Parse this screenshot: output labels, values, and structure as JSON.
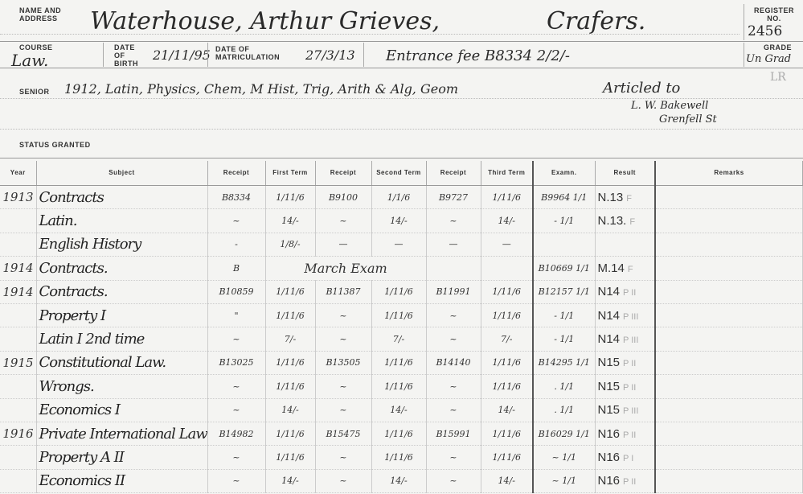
{
  "card": {
    "name_label": "Name and Address",
    "name": "Waterhouse, Arthur Grieves,",
    "address": "Crafers.",
    "register_label": "Register No.",
    "register_no": "2456",
    "course_label": "Course",
    "course": "Law.",
    "dob_label": "Date of Birth",
    "dob": "21/11/95",
    "matric_label": "Date of Matriculation",
    "matric": "27/3/13",
    "entrance": "Entrance fee B8334 2/2/-",
    "grade_label": "Grade",
    "grade": "Un Grad",
    "grade_note": "LR",
    "senior_label": "Senior",
    "senior": "1912, Latin, Physics, Chem, M Hist, Trig, Arith & Alg, Geom",
    "articled": "Articled to",
    "articled_name": "L. W. Bakewell",
    "articled_addr": "Grenfell St",
    "status_label": "Status Granted"
  },
  "table": {
    "headers": [
      "Year",
      "Subject",
      "Receipt",
      "First Term",
      "Receipt",
      "Second Term",
      "Receipt",
      "Third Term",
      "Examn.",
      "Result",
      "Remarks"
    ],
    "rows": [
      {
        "year": "1913",
        "subject": "Contracts",
        "r1": "B8334",
        "t1": "1/11/6",
        "r2": "B9100",
        "t2": "1/1/6",
        "r3": "B9727",
        "t3": "1/11/6",
        "exam": "B9964 1/1",
        "result": "N.13",
        "grade": "F"
      },
      {
        "year": "",
        "subject": "Latin.",
        "r1": "~",
        "t1": "14/-",
        "r2": "~",
        "t2": "14/-",
        "r3": "~",
        "t3": "14/-",
        "exam": "- 1/1",
        "result": "N.13.",
        "grade": "F"
      },
      {
        "year": "",
        "subject": "English History",
        "r1": "-",
        "t1": "1/8/-",
        "r2": "—",
        "t2": "—",
        "r3": "—",
        "t3": "—",
        "exam": "",
        "result": "",
        "grade": ""
      },
      {
        "year": "1914",
        "subject": "Contracts.",
        "r1": "B",
        "t1": "March Exam",
        "r2": "",
        "t2": "",
        "r3": "",
        "t3": "",
        "exam": "B10669 1/1",
        "result": "M.14",
        "grade": "F"
      },
      {
        "year": "1914",
        "subject": "Contracts.",
        "r1": "B10859",
        "t1": "1/11/6",
        "r2": "B11387",
        "t2": "1/11/6",
        "r3": "B11991",
        "t3": "1/11/6",
        "exam": "B12157 1/1",
        "result": "N14",
        "grade": "P II"
      },
      {
        "year": "",
        "subject": "Property I",
        "r1": "\"",
        "t1": "1/11/6",
        "r2": "~",
        "t2": "1/11/6",
        "r3": "~",
        "t3": "1/11/6",
        "exam": "- 1/1",
        "result": "N14",
        "grade": "P III"
      },
      {
        "year": "",
        "subject": "Latin I 2nd time",
        "r1": "~",
        "t1": "7/-",
        "r2": "~",
        "t2": "7/-",
        "r3": "~",
        "t3": "7/-",
        "exam": "- 1/1",
        "result": "N14",
        "grade": "P III"
      },
      {
        "year": "1915",
        "subject": "Constitutional Law.",
        "r1": "B13025",
        "t1": "1/11/6",
        "r2": "B13505",
        "t2": "1/11/6",
        "r3": "B14140",
        "t3": "1/11/6",
        "exam": "B14295 1/1",
        "result": "N15",
        "grade": "P II"
      },
      {
        "year": "",
        "subject": "Wrongs.",
        "r1": "~",
        "t1": "1/11/6",
        "r2": "~",
        "t2": "1/11/6",
        "r3": "~",
        "t3": "1/11/6",
        "exam": ". 1/1",
        "result": "N15",
        "grade": "P II"
      },
      {
        "year": "",
        "subject": "Economics I",
        "r1": "~",
        "t1": "14/-",
        "r2": "~",
        "t2": "14/-",
        "r3": "~",
        "t3": "14/-",
        "exam": ". 1/1",
        "result": "N15",
        "grade": "P III"
      },
      {
        "year": "1916",
        "subject": "Private International Law",
        "r1": "B14982",
        "t1": "1/11/6",
        "r2": "B15475",
        "t2": "1/11/6",
        "r3": "B15991",
        "t3": "1/11/6",
        "exam": "B16029 1/1",
        "result": "N16",
        "grade": "P II"
      },
      {
        "year": "",
        "subject": "Property A II",
        "r1": "~",
        "t1": "1/11/6",
        "r2": "~",
        "t2": "1/11/6",
        "r3": "~",
        "t3": "1/11/6",
        "exam": "~ 1/1",
        "result": "N16",
        "grade": "P I"
      },
      {
        "year": "",
        "subject": "Economics II",
        "r1": "~",
        "t1": "14/-",
        "r2": "~",
        "t2": "14/-",
        "r3": "~",
        "t3": "14/-",
        "exam": "~ 1/1",
        "result": "N16",
        "grade": "P II"
      }
    ]
  }
}
